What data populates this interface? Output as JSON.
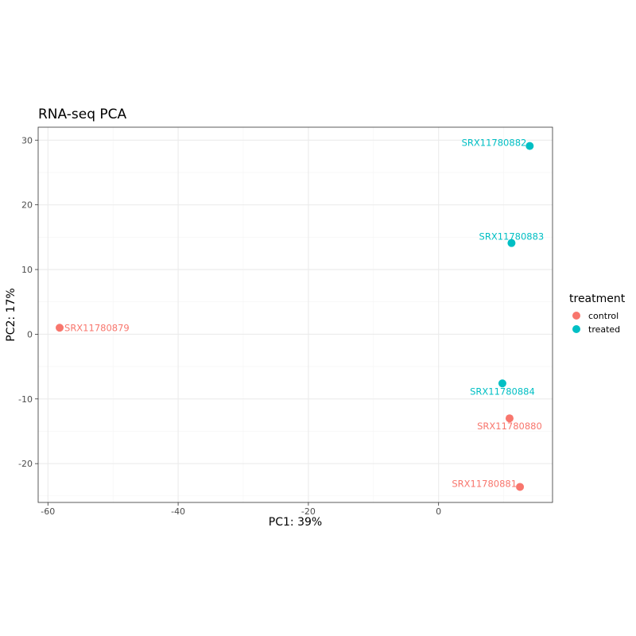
{
  "chart_data": {
    "type": "scatter",
    "title": "RNA-seq PCA",
    "xlabel": "PC1: 39%",
    "ylabel": "PC2: 17%",
    "xlim": [
      -61.5,
      17.5
    ],
    "ylim": [
      -26,
      32
    ],
    "x_ticks": [
      -60,
      -40,
      -20,
      0
    ],
    "x_tick_labels": [
      "-60",
      "-40",
      "-20",
      "0"
    ],
    "y_ticks": [
      -20,
      -10,
      0,
      10,
      20,
      30
    ],
    "y_tick_labels": [
      "-20",
      "-10",
      "0",
      "10",
      "20",
      "30"
    ],
    "grid": true,
    "legend_position": "right",
    "legend": {
      "title": "treatment",
      "entries": [
        {
          "name": "control",
          "color": "#f8766d"
        },
        {
          "name": "treated",
          "color": "#00bfc4"
        }
      ]
    },
    "points": [
      {
        "label": "SRX11780879",
        "x": -58.2,
        "y": 1.0,
        "group": "control",
        "label_side": "right"
      },
      {
        "label": "SRX11780880",
        "x": 10.9,
        "y": -13.0,
        "group": "control",
        "label_side": "below"
      },
      {
        "label": "SRX11780881",
        "x": 12.5,
        "y": -23.6,
        "group": "control",
        "label_side": "left"
      },
      {
        "label": "SRX11780882",
        "x": 14.0,
        "y": 29.1,
        "group": "treated",
        "label_side": "left"
      },
      {
        "label": "SRX11780883",
        "x": 11.2,
        "y": 14.1,
        "group": "treated",
        "label_side": "above"
      },
      {
        "label": "SRX11780884",
        "x": 9.8,
        "y": -7.6,
        "group": "treated",
        "label_side": "below"
      }
    ]
  }
}
